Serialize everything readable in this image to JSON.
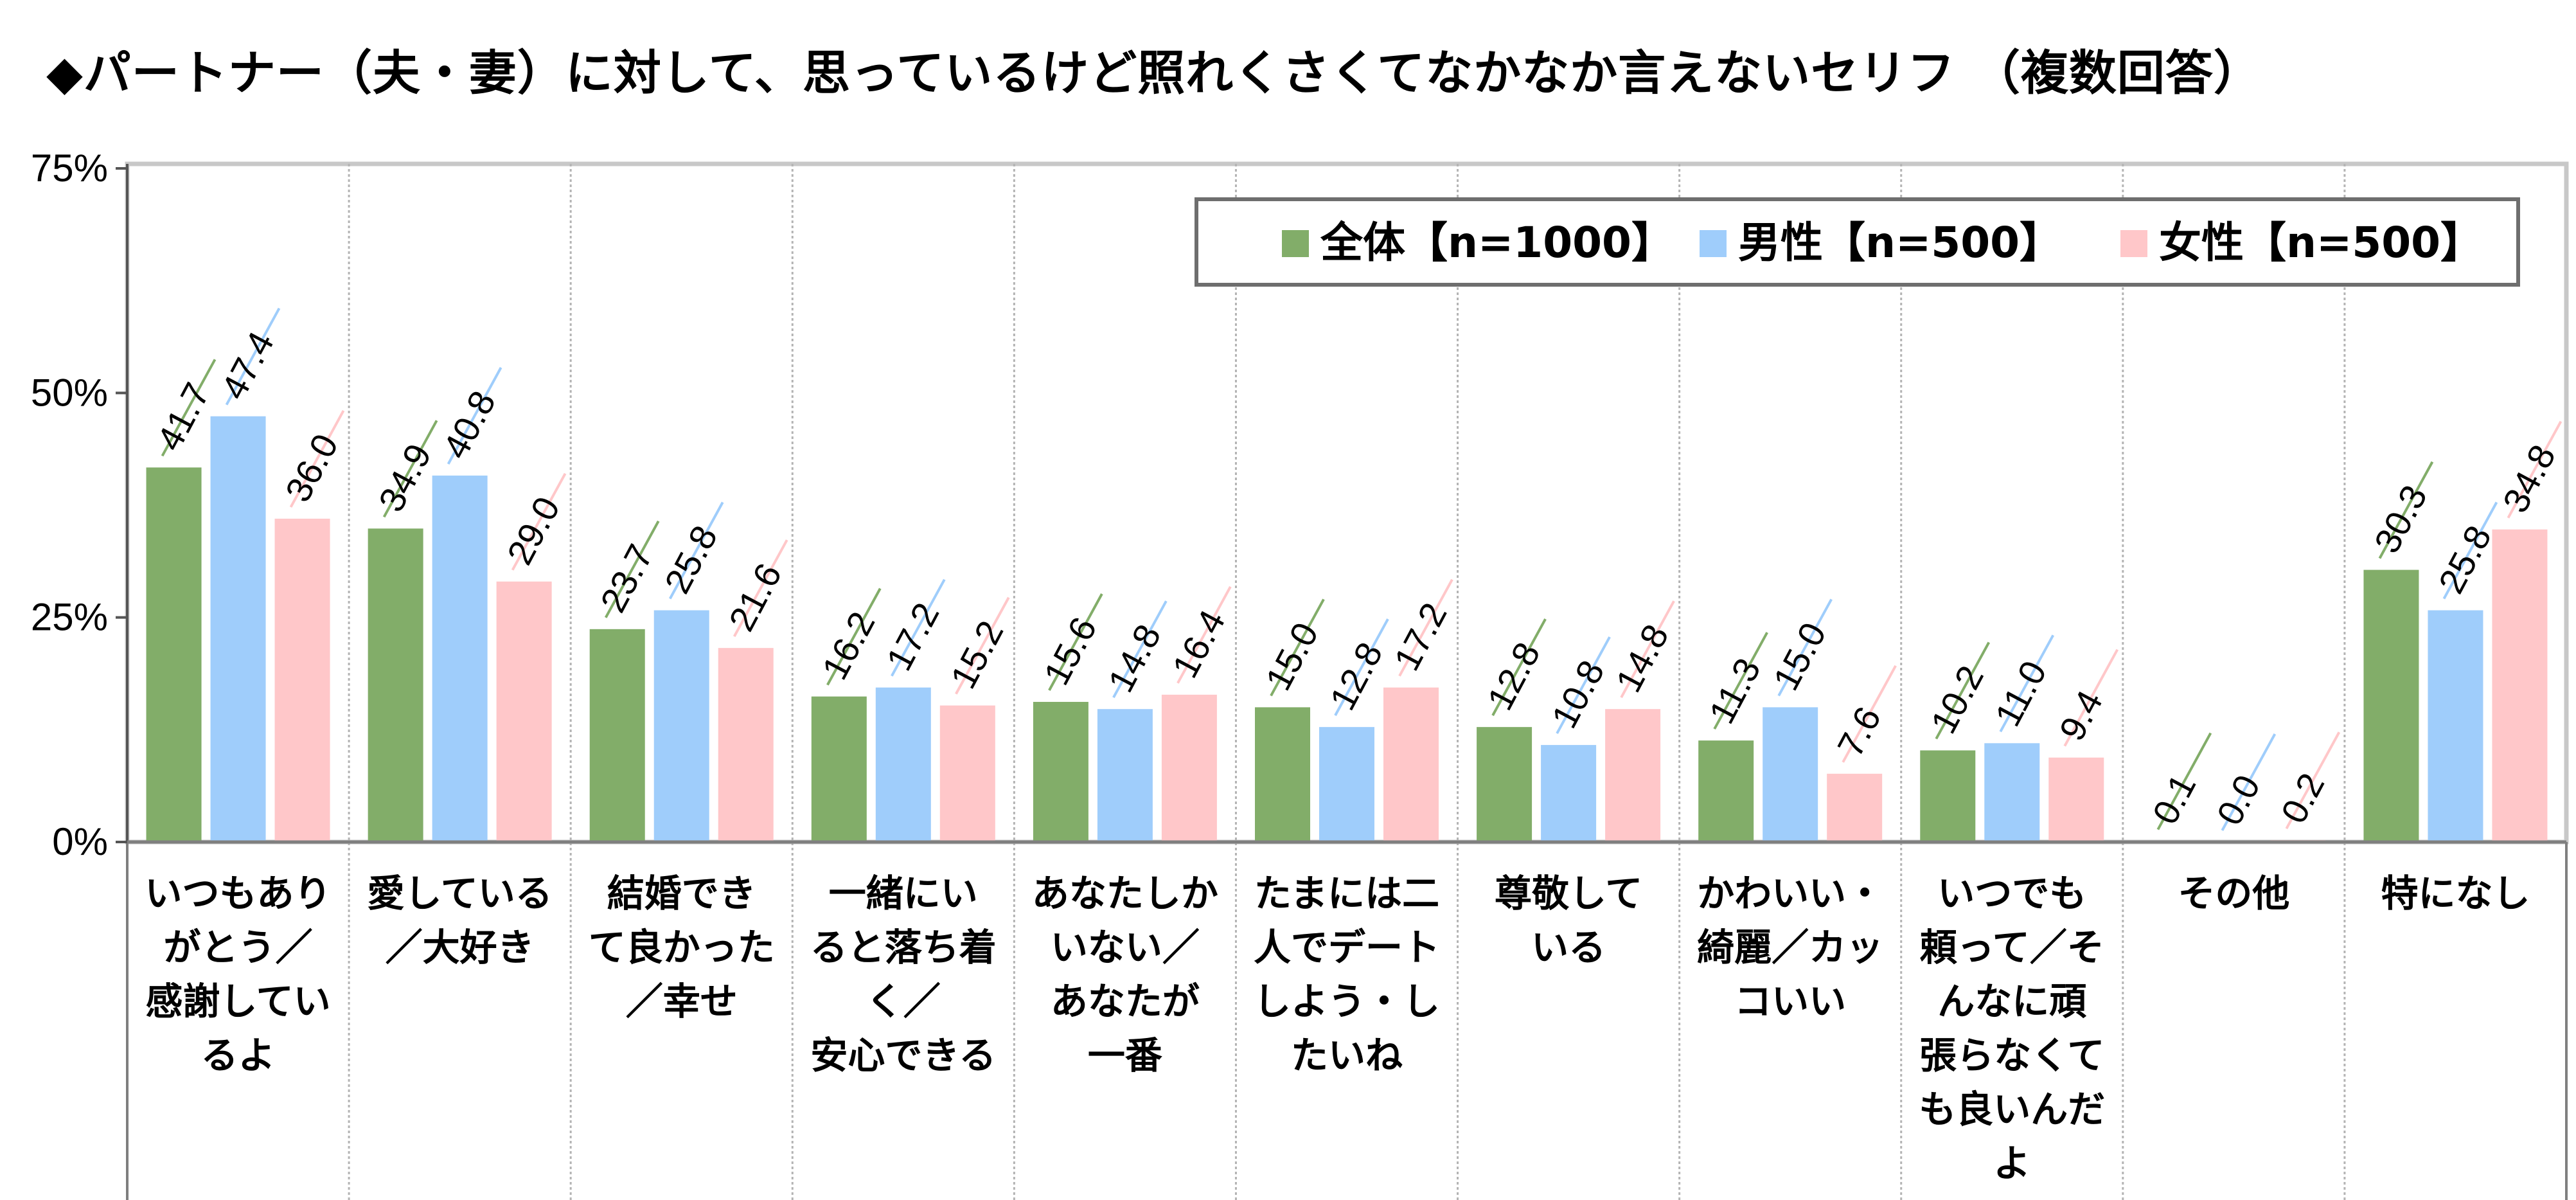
{
  "title": "◆パートナー（夫・妻）に対して、思っているけど照れくさくてなかなか言えないセリフ （複数回答）",
  "chart_data": {
    "type": "bar",
    "ylim": [
      0,
      75
    ],
    "yticks": [
      "0%",
      "25%",
      "50%",
      "75%"
    ],
    "yticks_values": [
      0,
      25,
      50,
      75
    ],
    "grid": false,
    "legend_position": "top-right",
    "categories": [
      [
        "いつもあり",
        "がとう／",
        "感謝してい",
        "るよ"
      ],
      [
        "愛している",
        "／大好き"
      ],
      [
        "結婚でき",
        "て良かった",
        "／幸せ"
      ],
      [
        "一緒にい",
        "ると落ち着",
        "く／",
        "安心できる"
      ],
      [
        "あなたしか",
        "いない／",
        "あなたが",
        "一番"
      ],
      [
        "たまには二",
        "人でデート",
        "しよう・し",
        "たいね"
      ],
      [
        "尊敬して",
        "いる"
      ],
      [
        "かわいい・",
        "綺麗／カッ",
        "コいい"
      ],
      [
        "いつでも",
        "頼って／そ",
        "んなに頑",
        "張らなくて",
        "も良いんだ",
        "よ"
      ],
      [
        "その他"
      ],
      [
        "特になし"
      ]
    ],
    "series": [
      {
        "name": "全体【n=1000】",
        "color": "#82ad69",
        "values": [
          41.7,
          34.9,
          23.7,
          16.2,
          15.6,
          15.0,
          12.8,
          11.3,
          10.2,
          0.1,
          30.3
        ],
        "labels": [
          "41.7",
          "34.9",
          "23.7",
          "16.2",
          "15.6",
          "15.0",
          "12.8",
          "11.3",
          "10.2",
          "0.1",
          "30.3"
        ]
      },
      {
        "name": "男性【n=500】",
        "color": "#9fcdfb",
        "values": [
          47.4,
          40.8,
          25.8,
          17.2,
          14.8,
          12.8,
          10.8,
          15.0,
          11.0,
          0.0,
          25.8
        ],
        "labels": [
          "47.4",
          "40.8",
          "25.8",
          "17.2",
          "14.8",
          "12.8",
          "10.8",
          "15.0",
          "11.0",
          "0.0",
          "25.8"
        ]
      },
      {
        "name": "女性【n=500】",
        "color": "#ffc7c9",
        "values": [
          36.0,
          29.0,
          21.6,
          15.2,
          16.4,
          17.2,
          14.8,
          7.6,
          9.4,
          0.2,
          34.8
        ],
        "labels": [
          "36.0",
          "29.0",
          "21.6",
          "15.2",
          "16.4",
          "17.2",
          "14.8",
          "7.6",
          "9.4",
          "0.2",
          "34.8"
        ]
      }
    ]
  }
}
